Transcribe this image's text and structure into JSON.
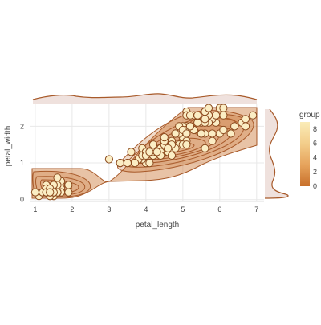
{
  "chart_data": {
    "type": "scatter",
    "title": "",
    "xlabel": "petal_length",
    "ylabel": "petal_width",
    "xlim": [
      0.85,
      7.2
    ],
    "ylim": [
      -0.05,
      2.6
    ],
    "x_ticks": [
      1,
      2,
      3,
      4,
      5,
      6,
      7
    ],
    "y_ticks": [
      0,
      1,
      2
    ],
    "grid": true,
    "marginal_top": "density",
    "marginal_right": "density",
    "legend": {
      "title": "group",
      "placement": "right",
      "ticks": [
        0,
        2,
        4,
        6,
        8
      ],
      "range": [
        0,
        9
      ],
      "colors": [
        "#c8702b",
        "#e6a35c",
        "#f3cd8a",
        "#faecb8"
      ]
    },
    "colors": {
      "contour_fill": "#c8702b",
      "contour_line": "#a85a2a",
      "marker_fill": "#fbedc4",
      "marker_edge": "#8b4a1e",
      "marginal_fill": "#efe1dd",
      "grid": "#e8e8e8"
    },
    "points": [
      {
        "x": 1.4,
        "y": 0.2
      },
      {
        "x": 1.4,
        "y": 0.2
      },
      {
        "x": 1.3,
        "y": 0.2
      },
      {
        "x": 1.5,
        "y": 0.2
      },
      {
        "x": 1.4,
        "y": 0.2
      },
      {
        "x": 1.7,
        "y": 0.4
      },
      {
        "x": 1.4,
        "y": 0.3
      },
      {
        "x": 1.5,
        "y": 0.2
      },
      {
        "x": 1.4,
        "y": 0.2
      },
      {
        "x": 1.5,
        "y": 0.1
      },
      {
        "x": 1.5,
        "y": 0.2
      },
      {
        "x": 1.6,
        "y": 0.2
      },
      {
        "x": 1.4,
        "y": 0.1
      },
      {
        "x": 1.1,
        "y": 0.1
      },
      {
        "x": 1.2,
        "y": 0.2
      },
      {
        "x": 1.5,
        "y": 0.4
      },
      {
        "x": 1.3,
        "y": 0.4
      },
      {
        "x": 1.4,
        "y": 0.3
      },
      {
        "x": 1.7,
        "y": 0.3
      },
      {
        "x": 1.5,
        "y": 0.3
      },
      {
        "x": 1.7,
        "y": 0.2
      },
      {
        "x": 1.5,
        "y": 0.4
      },
      {
        "x": 1.0,
        "y": 0.2
      },
      {
        "x": 1.7,
        "y": 0.5
      },
      {
        "x": 1.9,
        "y": 0.2
      },
      {
        "x": 1.6,
        "y": 0.2
      },
      {
        "x": 1.6,
        "y": 0.4
      },
      {
        "x": 1.5,
        "y": 0.2
      },
      {
        "x": 1.4,
        "y": 0.2
      },
      {
        "x": 1.6,
        "y": 0.2
      },
      {
        "x": 1.6,
        "y": 0.2
      },
      {
        "x": 1.5,
        "y": 0.4
      },
      {
        "x": 1.5,
        "y": 0.1
      },
      {
        "x": 1.4,
        "y": 0.2
      },
      {
        "x": 1.5,
        "y": 0.2
      },
      {
        "x": 1.2,
        "y": 0.2
      },
      {
        "x": 1.3,
        "y": 0.2
      },
      {
        "x": 1.4,
        "y": 0.1
      },
      {
        "x": 1.3,
        "y": 0.2
      },
      {
        "x": 1.5,
        "y": 0.2
      },
      {
        "x": 1.3,
        "y": 0.3
      },
      {
        "x": 1.3,
        "y": 0.3
      },
      {
        "x": 1.3,
        "y": 0.2
      },
      {
        "x": 1.6,
        "y": 0.6
      },
      {
        "x": 1.9,
        "y": 0.4
      },
      {
        "x": 1.4,
        "y": 0.3
      },
      {
        "x": 1.6,
        "y": 0.2
      },
      {
        "x": 1.4,
        "y": 0.2
      },
      {
        "x": 1.5,
        "y": 0.2
      },
      {
        "x": 1.4,
        "y": 0.2
      },
      {
        "x": 4.7,
        "y": 1.4
      },
      {
        "x": 4.5,
        "y": 1.5
      },
      {
        "x": 4.9,
        "y": 1.5
      },
      {
        "x": 4.0,
        "y": 1.3
      },
      {
        "x": 4.6,
        "y": 1.5
      },
      {
        "x": 4.5,
        "y": 1.3
      },
      {
        "x": 4.7,
        "y": 1.6
      },
      {
        "x": 3.3,
        "y": 1.0
      },
      {
        "x": 4.6,
        "y": 1.3
      },
      {
        "x": 3.9,
        "y": 1.4
      },
      {
        "x": 3.5,
        "y": 1.0
      },
      {
        "x": 4.2,
        "y": 1.5
      },
      {
        "x": 4.0,
        "y": 1.0
      },
      {
        "x": 4.7,
        "y": 1.4
      },
      {
        "x": 3.6,
        "y": 1.3
      },
      {
        "x": 4.4,
        "y": 1.4
      },
      {
        "x": 4.5,
        "y": 1.5
      },
      {
        "x": 4.1,
        "y": 1.0
      },
      {
        "x": 4.5,
        "y": 1.5
      },
      {
        "x": 3.9,
        "y": 1.1
      },
      {
        "x": 4.8,
        "y": 1.8
      },
      {
        "x": 4.0,
        "y": 1.3
      },
      {
        "x": 4.9,
        "y": 1.5
      },
      {
        "x": 4.7,
        "y": 1.2
      },
      {
        "x": 4.3,
        "y": 1.3
      },
      {
        "x": 4.4,
        "y": 1.4
      },
      {
        "x": 4.8,
        "y": 1.4
      },
      {
        "x": 5.0,
        "y": 1.7
      },
      {
        "x": 4.5,
        "y": 1.5
      },
      {
        "x": 3.5,
        "y": 1.0
      },
      {
        "x": 3.8,
        "y": 1.1
      },
      {
        "x": 3.7,
        "y": 1.0
      },
      {
        "x": 3.9,
        "y": 1.2
      },
      {
        "x": 5.1,
        "y": 1.6
      },
      {
        "x": 4.5,
        "y": 1.5
      },
      {
        "x": 4.5,
        "y": 1.6
      },
      {
        "x": 4.7,
        "y": 1.5
      },
      {
        "x": 4.4,
        "y": 1.3
      },
      {
        "x": 4.1,
        "y": 1.3
      },
      {
        "x": 4.0,
        "y": 1.3
      },
      {
        "x": 4.4,
        "y": 1.2
      },
      {
        "x": 4.6,
        "y": 1.4
      },
      {
        "x": 4.0,
        "y": 1.2
      },
      {
        "x": 3.3,
        "y": 1.0
      },
      {
        "x": 4.2,
        "y": 1.3
      },
      {
        "x": 4.2,
        "y": 1.2
      },
      {
        "x": 4.2,
        "y": 1.3
      },
      {
        "x": 4.3,
        "y": 1.3
      },
      {
        "x": 3.0,
        "y": 1.1
      },
      {
        "x": 4.1,
        "y": 1.3
      },
      {
        "x": 6.0,
        "y": 2.5
      },
      {
        "x": 5.1,
        "y": 1.9
      },
      {
        "x": 5.9,
        "y": 2.1
      },
      {
        "x": 5.6,
        "y": 1.8
      },
      {
        "x": 5.8,
        "y": 2.2
      },
      {
        "x": 6.6,
        "y": 2.1
      },
      {
        "x": 4.5,
        "y": 1.7
      },
      {
        "x": 6.3,
        "y": 1.8
      },
      {
        "x": 5.8,
        "y": 1.8
      },
      {
        "x": 6.1,
        "y": 2.5
      },
      {
        "x": 5.1,
        "y": 2.0
      },
      {
        "x": 5.3,
        "y": 1.9
      },
      {
        "x": 5.5,
        "y": 2.1
      },
      {
        "x": 5.0,
        "y": 2.0
      },
      {
        "x": 5.1,
        "y": 2.4
      },
      {
        "x": 5.3,
        "y": 2.3
      },
      {
        "x": 5.5,
        "y": 1.8
      },
      {
        "x": 6.7,
        "y": 2.2
      },
      {
        "x": 6.9,
        "y": 2.3
      },
      {
        "x": 5.0,
        "y": 1.5
      },
      {
        "x": 5.7,
        "y": 2.3
      },
      {
        "x": 4.9,
        "y": 2.0
      },
      {
        "x": 6.7,
        "y": 2.0
      },
      {
        "x": 4.9,
        "y": 1.8
      },
      {
        "x": 5.7,
        "y": 2.1
      },
      {
        "x": 6.0,
        "y": 1.8
      },
      {
        "x": 4.8,
        "y": 1.8
      },
      {
        "x": 4.9,
        "y": 1.8
      },
      {
        "x": 5.6,
        "y": 2.1
      },
      {
        "x": 5.8,
        "y": 1.6
      },
      {
        "x": 6.1,
        "y": 1.9
      },
      {
        "x": 6.4,
        "y": 2.0
      },
      {
        "x": 5.6,
        "y": 2.2
      },
      {
        "x": 5.1,
        "y": 1.5
      },
      {
        "x": 5.6,
        "y": 1.4
      },
      {
        "x": 6.1,
        "y": 2.3
      },
      {
        "x": 5.6,
        "y": 2.4
      },
      {
        "x": 5.5,
        "y": 1.8
      },
      {
        "x": 4.8,
        "y": 1.8
      },
      {
        "x": 5.4,
        "y": 2.1
      },
      {
        "x": 5.6,
        "y": 2.4
      },
      {
        "x": 5.1,
        "y": 2.3
      },
      {
        "x": 5.1,
        "y": 1.9
      },
      {
        "x": 5.9,
        "y": 2.3
      },
      {
        "x": 5.7,
        "y": 2.5
      },
      {
        "x": 5.2,
        "y": 2.3
      },
      {
        "x": 5.0,
        "y": 1.9
      },
      {
        "x": 5.2,
        "y": 2.0
      },
      {
        "x": 5.4,
        "y": 2.3
      },
      {
        "x": 5.1,
        "y": 1.8
      }
    ]
  }
}
